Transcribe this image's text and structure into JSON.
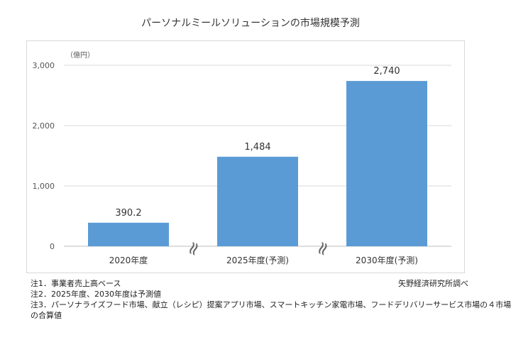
{
  "chart_data": {
    "type": "bar",
    "title": "パーソナルミールソリューションの市場規模予測",
    "unit_label": "（億円）",
    "categories": [
      "2020年度",
      "2025年度(予測)",
      "2030年度(予測)"
    ],
    "values": [
      390.2,
      1484,
      2740
    ],
    "value_labels": [
      "390.2",
      "1,484",
      "2,740"
    ],
    "ylim": [
      0,
      3000
    ],
    "yticks": [
      0,
      1000,
      2000,
      3000
    ],
    "ytick_labels": [
      "0",
      "1,000",
      "2,000",
      "3,000"
    ],
    "grid": true,
    "legend": "none",
    "bar_color": "#5b9bd5",
    "axis_break_symbol": "≈"
  },
  "notes": [
    "注1．事業者売上高ベース",
    "注2．2025年度、2030年度は予測値",
    "注3．パーソナライズフード市場、献立（レシピ）提案アプリ市場、スマートキッチン家電市場、フードデリバリーサービス市場の４市場",
    "の合算値"
  ],
  "source": "矢野経済研究所調べ"
}
